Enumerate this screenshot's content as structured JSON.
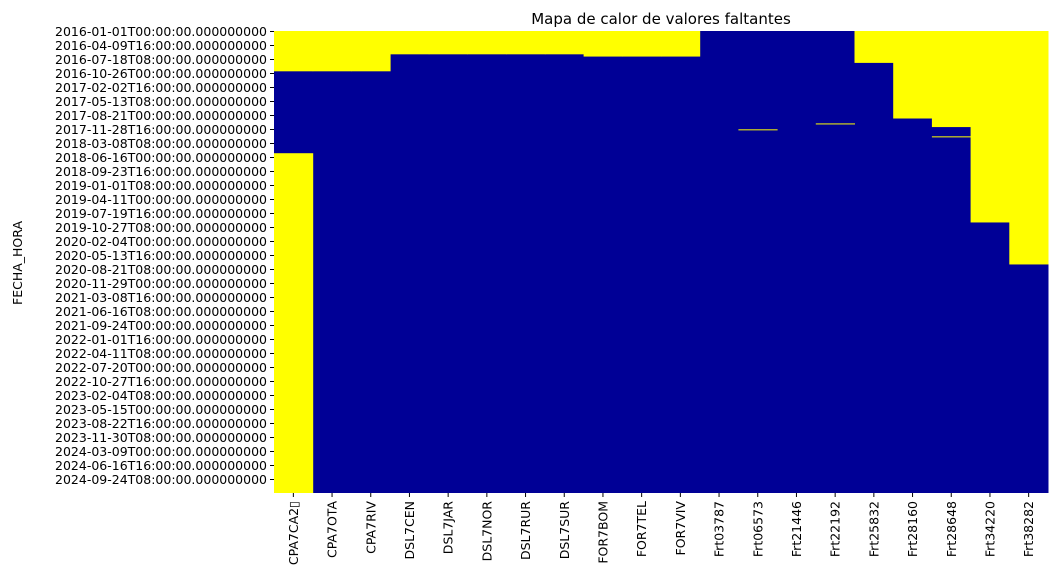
{
  "chart_data": {
    "type": "heatmap",
    "title": "Mapa de calor de valores faltantes",
    "ylabel": "FECHA_HORA",
    "xlabel": "",
    "colors": {
      "missing": "#ffff00",
      "present": "#000096"
    },
    "columns": [
      "CPA7CA2▯",
      "CPA7OTA",
      "CPA7RIV",
      "DSL7CEN",
      "DSL7JAR",
      "DSL7NOR",
      "DSL7RUR",
      "DSL7SUR",
      "FOR7BOM",
      "FOR7TEL",
      "FOR7VIV",
      "Frt03787",
      "Frt06573",
      "Frt21446",
      "Frt22192",
      "Frt25832",
      "Frt28160",
      "Frt28648",
      "Frt34220",
      "Frt38282"
    ],
    "y_ticks": [
      "2016-01-01T00:00:00.000000000",
      "2016-04-09T16:00:00.000000000",
      "2016-07-18T08:00:00.000000000",
      "2016-10-26T00:00:00.000000000",
      "2017-02-02T16:00:00.000000000",
      "2017-05-13T08:00:00.000000000",
      "2017-08-21T00:00:00.000000000",
      "2017-11-28T16:00:00.000000000",
      "2018-03-08T08:00:00.000000000",
      "2018-06-16T00:00:00.000000000",
      "2018-09-23T16:00:00.000000000",
      "2019-01-01T08:00:00.000000000",
      "2019-04-11T00:00:00.000000000",
      "2019-07-19T16:00:00.000000000",
      "2019-10-27T08:00:00.000000000",
      "2020-02-04T00:00:00.000000000",
      "2020-05-13T16:00:00.000000000",
      "2020-08-21T08:00:00.000000000",
      "2020-11-29T00:00:00.000000000",
      "2021-03-08T16:00:00.000000000",
      "2021-06-16T08:00:00.000000000",
      "2021-09-24T00:00:00.000000000",
      "2022-01-01T16:00:00.000000000",
      "2022-04-11T08:00:00.000000000",
      "2022-07-20T00:00:00.000000000",
      "2022-10-27T16:00:00.000000000",
      "2023-02-04T08:00:00.000000000",
      "2023-05-15T00:00:00.000000000",
      "2023-08-22T16:00:00.000000000",
      "2023-11-30T08:00:00.000000000",
      "2024-03-09T00:00:00.000000000",
      "2024-06-16T16:00:00.000000000",
      "2024-09-24T08:00:00.000000000"
    ],
    "missing_ranges": [
      {
        "column": "CPA7CA2▯",
        "from": "2016-01-01T00:00:00",
        "to": "2016-10-14T00:00:00"
      },
      {
        "column": "CPA7CA2▯",
        "from": "2018-05-20T00:00:00",
        "to": "2024-12-31T00:00:00"
      },
      {
        "column": "CPA7OTA",
        "from": "2016-01-01T00:00:00",
        "to": "2016-10-14T00:00:00"
      },
      {
        "column": "CPA7RIV",
        "from": "2016-01-01T00:00:00",
        "to": "2016-10-14T00:00:00"
      },
      {
        "column": "DSL7CEN",
        "from": "2016-01-01T00:00:00",
        "to": "2016-06-15T00:00:00"
      },
      {
        "column": "DSL7JAR",
        "from": "2016-01-01T00:00:00",
        "to": "2016-06-15T00:00:00"
      },
      {
        "column": "DSL7NOR",
        "from": "2016-01-01T00:00:00",
        "to": "2016-06-15T00:00:00"
      },
      {
        "column": "DSL7RUR",
        "from": "2016-01-01T00:00:00",
        "to": "2016-06-15T00:00:00"
      },
      {
        "column": "DSL7SUR",
        "from": "2016-01-01T00:00:00",
        "to": "2016-06-15T00:00:00"
      },
      {
        "column": "FOR7BOM",
        "from": "2016-01-01T00:00:00",
        "to": "2016-07-01T00:00:00"
      },
      {
        "column": "FOR7TEL",
        "from": "2016-01-01T00:00:00",
        "to": "2016-07-01T00:00:00"
      },
      {
        "column": "FOR7VIV",
        "from": "2016-01-01T00:00:00",
        "to": "2016-07-01T00:00:00"
      },
      {
        "column": "Frt06573",
        "from": "2017-12-01T00:00:00",
        "to": "2017-12-03T00:00:00"
      },
      {
        "column": "Frt22192",
        "from": "2017-10-20T00:00:00",
        "to": "2017-10-22T00:00:00"
      },
      {
        "column": "Frt25832",
        "from": "2016-01-01T00:00:00",
        "to": "2016-08-15T00:00:00"
      },
      {
        "column": "Frt28160",
        "from": "2016-01-01T00:00:00",
        "to": "2017-09-15T00:00:00"
      },
      {
        "column": "Frt28648",
        "from": "2016-01-01T00:00:00",
        "to": "2017-11-15T00:00:00"
      },
      {
        "column": "Frt28648",
        "from": "2018-01-20T00:00:00",
        "to": "2018-01-22T00:00:00"
      },
      {
        "column": "Frt34220",
        "from": "2016-01-01T00:00:00",
        "to": "2019-09-25T00:00:00"
      },
      {
        "column": "Frt38282",
        "from": "2016-01-01T00:00:00",
        "to": "2020-07-20T00:00:00"
      }
    ]
  }
}
